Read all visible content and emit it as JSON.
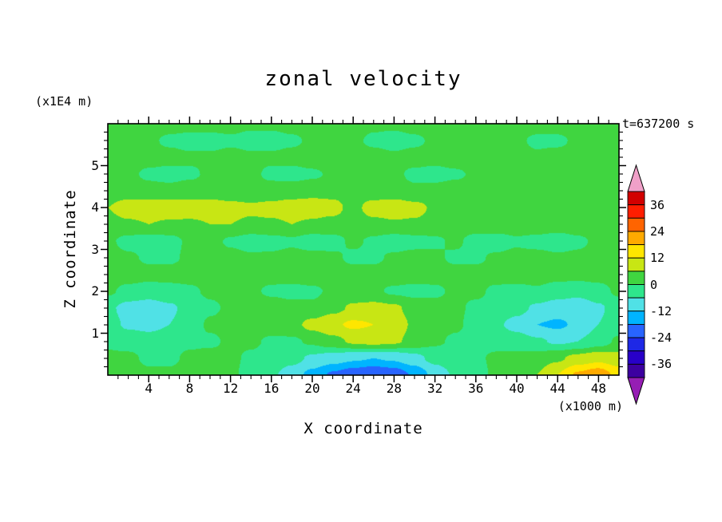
{
  "chart_data": {
    "type": "heatmap",
    "title": "zonal velocity",
    "time_annotation": "t=637200 s",
    "x_axis": {
      "label": "X coordinate",
      "unit": "(x1000 m)",
      "min": 0,
      "max": 50,
      "major_tick_step": 4,
      "minor_tick_step": 1,
      "tick_labels": [
        4,
        8,
        12,
        16,
        20,
        24,
        28,
        32,
        36,
        40,
        44,
        48
      ]
    },
    "z_axis": {
      "label": "Z coordinate",
      "unit": "(x1E4 m)",
      "min": 0,
      "max": 6,
      "major_tick_step": 1,
      "minor_tick_step": 0.2,
      "tick_labels": [
        1,
        2,
        3,
        4,
        5
      ]
    },
    "colorbar": {
      "tick_labels": [
        36,
        24,
        12,
        0,
        -12,
        -24,
        -36
      ],
      "band_width": 6,
      "max": 42,
      "min": -42,
      "above_max_color": "#f0a0c8",
      "below_min_color": "#961eb4",
      "bands_top_to_bottom": [
        {
          "min": 36,
          "color": "#d20000"
        },
        {
          "min": 30,
          "color": "#ff1e00"
        },
        {
          "min": 24,
          "color": "#ff6400"
        },
        {
          "min": 18,
          "color": "#ffaa00"
        },
        {
          "min": 12,
          "color": "#ffe600"
        },
        {
          "min": 6,
          "color": "#c8e614"
        },
        {
          "min": 0,
          "color": "#40d540"
        },
        {
          "min": -6,
          "color": "#2ee68c"
        },
        {
          "min": -12,
          "color": "#50e1e6"
        },
        {
          "min": -18,
          "color": "#00b4ff"
        },
        {
          "min": -24,
          "color": "#2864ff"
        },
        {
          "min": -30,
          "color": "#1e28e6"
        },
        {
          "min": -36,
          "color": "#2800c8"
        },
        {
          "min": -42,
          "color": "#3c00a0"
        }
      ]
    },
    "grid": {
      "x_values": [
        0,
        2,
        4,
        6,
        8,
        10,
        12,
        14,
        16,
        18,
        20,
        22,
        24,
        26,
        28,
        30,
        32,
        34,
        36,
        38,
        40,
        42,
        44,
        46,
        48,
        50
      ],
      "z_values_top_to_bottom": [
        6.0,
        5.6,
        5.2,
        4.8,
        4.4,
        4.0,
        3.6,
        3.2,
        2.8,
        2.4,
        2.0,
        1.6,
        1.2,
        0.8,
        0.4,
        0.0
      ],
      "values": [
        [
          2,
          2,
          2,
          2,
          2,
          2,
          2,
          1,
          1,
          2,
          2,
          2,
          2,
          1,
          1,
          2,
          2,
          2,
          2,
          2,
          2,
          2,
          2,
          2,
          2,
          2
        ],
        [
          3,
          2,
          1,
          -1,
          -2,
          -2,
          -1,
          -2,
          -2,
          -1,
          1,
          2,
          1,
          -1,
          -2,
          -1,
          1,
          2,
          2,
          1,
          1,
          -1,
          -1,
          1,
          2,
          3
        ],
        [
          3,
          3,
          2,
          2,
          1,
          1,
          2,
          1,
          1,
          2,
          3,
          3,
          2,
          2,
          1,
          2,
          2,
          3,
          3,
          2,
          2,
          1,
          2,
          2,
          3,
          3
        ],
        [
          2,
          1,
          -1,
          -2,
          -1,
          1,
          2,
          1,
          -1,
          -2,
          -1,
          1,
          2,
          2,
          1,
          -1,
          -2,
          -1,
          1,
          2,
          2,
          1,
          1,
          2,
          2,
          2
        ],
        [
          3,
          3,
          2,
          2,
          3,
          3,
          2,
          2,
          2,
          3,
          4,
          4,
          3,
          2,
          2,
          1,
          2,
          3,
          3,
          2,
          2,
          2,
          3,
          3,
          2,
          2
        ],
        [
          6,
          9,
          10,
          10,
          9,
          9,
          8,
          7,
          8,
          9,
          9,
          8,
          4,
          9,
          10,
          8,
          5,
          3,
          2,
          2,
          3,
          4,
          5,
          4,
          3,
          2
        ],
        [
          4,
          5,
          6,
          5,
          5,
          6,
          6,
          5,
          5,
          6,
          5,
          4,
          3,
          4,
          5,
          5,
          4,
          3,
          3,
          4,
          4,
          4,
          3,
          3,
          3,
          2
        ],
        [
          1,
          -2,
          -3,
          -2,
          1,
          2,
          -1,
          -3,
          -2,
          -1,
          -3,
          -2,
          1,
          -1,
          -3,
          -2,
          -1,
          1,
          -2,
          -3,
          -1,
          -2,
          -3,
          -1,
          1,
          2
        ],
        [
          2,
          1,
          -1,
          -1,
          1,
          2,
          2,
          1,
          1,
          2,
          2,
          1,
          -1,
          -1,
          1,
          2,
          1,
          -1,
          -1,
          1,
          2,
          2,
          1,
          1,
          2,
          2
        ],
        [
          3,
          3,
          2,
          2,
          2,
          3,
          3,
          2,
          2,
          3,
          3,
          2,
          2,
          2,
          3,
          3,
          2,
          2,
          2,
          2,
          3,
          3,
          2,
          2,
          2,
          2
        ],
        [
          1,
          -2,
          -3,
          -2,
          -1,
          1,
          2,
          1,
          -1,
          -2,
          -1,
          1,
          2,
          1,
          -1,
          -2,
          -1,
          1,
          1,
          -1,
          -2,
          -1,
          -3,
          -4,
          -2,
          1
        ],
        [
          -5,
          -8,
          -9,
          -7,
          -4,
          -1,
          1,
          2,
          3,
          2,
          1,
          4,
          7,
          8,
          7,
          4,
          2,
          1,
          -1,
          -2,
          -4,
          -7,
          -9,
          -10,
          -7,
          -3
        ],
        [
          -4,
          -7,
          -8,
          -6,
          -3,
          1,
          2,
          3,
          3,
          4,
          8,
          11,
          13,
          12,
          9,
          5,
          2,
          1,
          -2,
          -5,
          -8,
          -12,
          -13,
          -11,
          -6,
          -3
        ],
        [
          -1,
          -2,
          -3,
          -2,
          -1,
          -1,
          1,
          1,
          -1,
          -1,
          1,
          4,
          7,
          8,
          7,
          4,
          1,
          -1,
          -2,
          -2,
          -3,
          -5,
          -7,
          -6,
          -3,
          1
        ],
        [
          1,
          1,
          -1,
          -1,
          1,
          2,
          1,
          -1,
          -2,
          -4,
          -7,
          -9,
          -11,
          -12,
          -11,
          -8,
          -4,
          -2,
          -1,
          1,
          2,
          3,
          5,
          8,
          10,
          8
        ],
        [
          2,
          2,
          1,
          1,
          2,
          2,
          1,
          -2,
          -5,
          -9,
          -14,
          -19,
          -22,
          -24,
          -22,
          -17,
          -10,
          -5,
          -2,
          1,
          3,
          6,
          12,
          19,
          22,
          16
        ]
      ]
    }
  }
}
